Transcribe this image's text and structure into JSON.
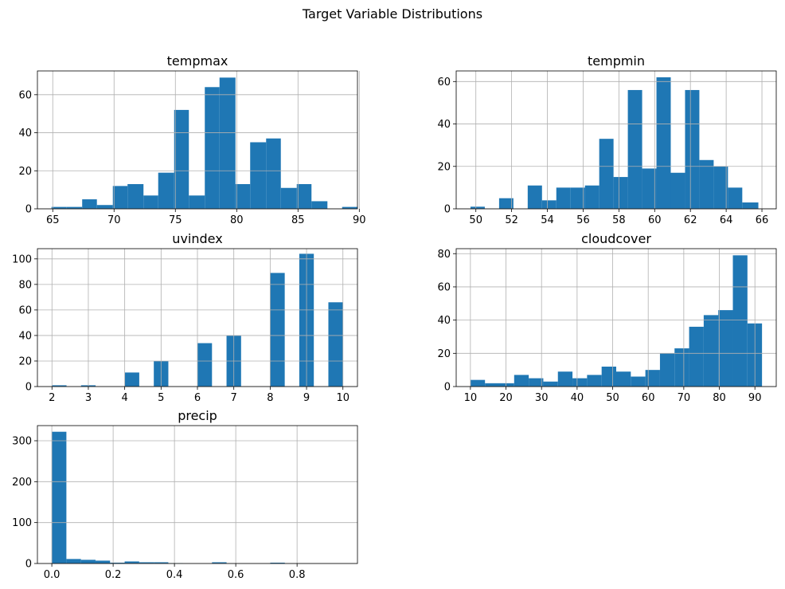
{
  "figure": {
    "title": "Target Variable Distributions"
  },
  "colors": {
    "bar": "#1f77b4",
    "grid": "#b0b0b0",
    "axis": "#000000"
  },
  "chart_data": [
    {
      "type": "bar",
      "title": "tempmax",
      "xlim": [
        63.75,
        89.85
      ],
      "ylim": [
        0,
        72.5
      ],
      "xticks": [
        65,
        70,
        75,
        80,
        85,
        90
      ],
      "yticks": [
        0,
        20,
        40,
        60
      ],
      "grid": true,
      "bin_edges": [
        64.9,
        66.1,
        67.4,
        68.6,
        69.9,
        71.1,
        72.4,
        73.6,
        74.9,
        76.1,
        77.4,
        78.6,
        79.9,
        81.1,
        82.4,
        83.6,
        84.9,
        86.1,
        87.4,
        88.6,
        89.85
      ],
      "values": [
        1,
        1,
        5,
        2,
        12,
        13,
        7,
        19,
        52,
        7,
        64,
        69,
        13,
        35,
        37,
        11,
        13,
        4,
        0,
        1
      ]
    },
    {
      "type": "bar",
      "title": "tempmin",
      "xlim": [
        48.9,
        66.8
      ],
      "ylim": [
        0,
        65
      ],
      "xticks": [
        50,
        52,
        54,
        56,
        58,
        60,
        62,
        64,
        66
      ],
      "yticks": [
        0,
        20,
        40,
        60
      ],
      "grid": true,
      "bin_edges": [
        49.7,
        50.5,
        51.3,
        52.1,
        52.9,
        53.7,
        54.5,
        55.3,
        56.1,
        56.9,
        57.7,
        58.5,
        59.3,
        60.1,
        60.9,
        61.7,
        62.5,
        63.3,
        64.1,
        64.9,
        65.8
      ],
      "values": [
        1,
        0,
        5,
        0,
        11,
        4,
        10,
        10,
        11,
        33,
        15,
        56,
        19,
        62,
        17,
        56,
        23,
        20,
        10,
        3
      ]
    },
    {
      "type": "bar",
      "title": "uvindex",
      "xlim": [
        1.6,
        10.4
      ],
      "ylim": [
        0,
        108
      ],
      "xticks": [
        2,
        3,
        4,
        5,
        6,
        7,
        8,
        9,
        10
      ],
      "yticks": [
        0,
        20,
        40,
        60,
        80,
        100
      ],
      "grid": true,
      "bin_edges": [
        2,
        2.4,
        2.8,
        3.2,
        3.6,
        4.0,
        4.4,
        4.8,
        5.2,
        5.6,
        6.0,
        6.4,
        6.8,
        7.2,
        7.6,
        8.0,
        8.4,
        8.8,
        9.2,
        9.6,
        10.0
      ],
      "values": [
        1,
        0,
        1,
        0,
        0,
        11,
        0,
        20,
        0,
        0,
        34,
        0,
        40,
        0,
        0,
        89,
        0,
        104,
        0,
        66
      ]
    },
    {
      "type": "bar",
      "title": "cloudcover",
      "xlim": [
        6,
        96
      ],
      "ylim": [
        0,
        83
      ],
      "xticks": [
        10,
        20,
        30,
        40,
        50,
        60,
        70,
        80,
        90
      ],
      "yticks": [
        0,
        20,
        40,
        60,
        80
      ],
      "grid": true,
      "bin_edges": [
        10,
        14.1,
        18.2,
        22.3,
        26.4,
        30.5,
        34.6,
        38.7,
        42.8,
        46.9,
        51.0,
        55.1,
        59.2,
        63.3,
        67.4,
        71.5,
        75.6,
        79.7,
        83.8,
        87.9,
        92
      ],
      "values": [
        4,
        2,
        2,
        7,
        5,
        3,
        9,
        5,
        7,
        12,
        9,
        6,
        10,
        20,
        23,
        36,
        43,
        46,
        79,
        38
      ]
    },
    {
      "type": "bar",
      "title": "precip",
      "xlim": [
        -0.047,
        0.997
      ],
      "ylim": [
        0,
        337
      ],
      "xticks": [
        0.0,
        0.2,
        0.4,
        0.6,
        0.8
      ],
      "xtick_labels": [
        "0.0",
        "0.2",
        "0.4",
        "0.6",
        "0.8"
      ],
      "yticks": [
        0,
        100,
        200,
        300
      ],
      "grid": true,
      "bin_edges": [
        0,
        0.0475,
        0.095,
        0.1425,
        0.19,
        0.2375,
        0.285,
        0.3325,
        0.38,
        0.4275,
        0.475,
        0.5225,
        0.57,
        0.6175,
        0.665,
        0.7125,
        0.76,
        0.8075,
        0.855,
        0.9025,
        0.95
      ],
      "values": [
        322,
        11,
        9,
        7,
        2,
        5,
        3,
        3,
        1,
        0,
        0,
        3,
        0,
        0,
        0,
        2,
        0,
        0,
        0,
        0
      ]
    }
  ]
}
